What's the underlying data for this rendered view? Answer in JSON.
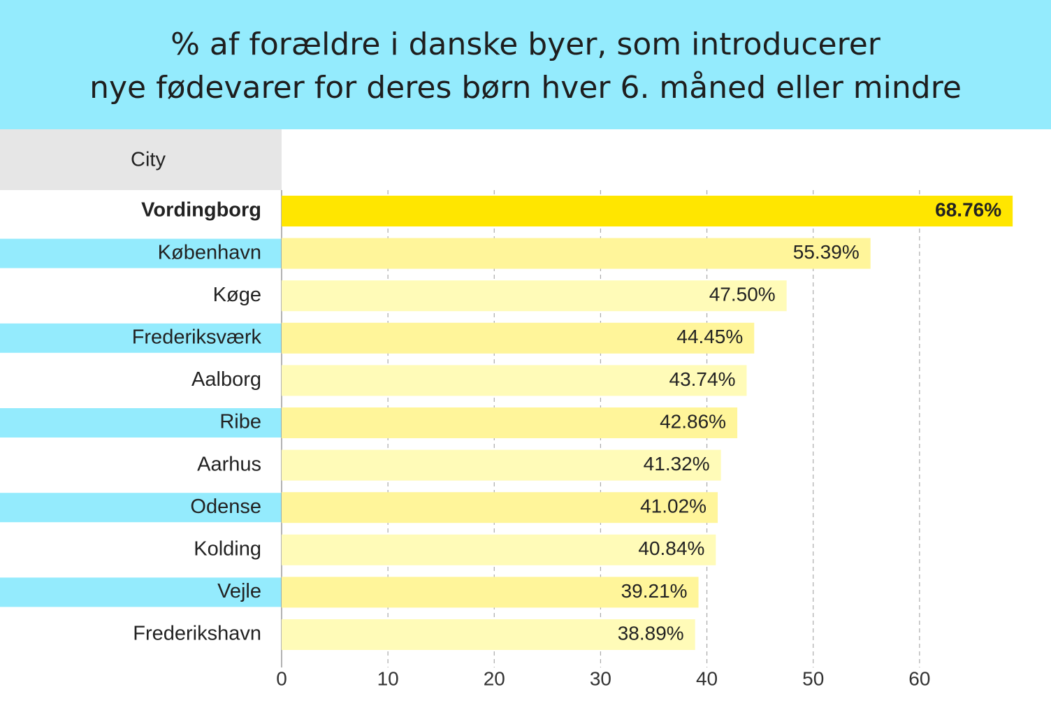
{
  "chart_data": {
    "type": "bar",
    "orientation": "horizontal",
    "title": [
      "% af forældre i danske byer, som introducerer",
      "nye fødevarer for deres børn hver 6. måned eller mindre"
    ],
    "y_label": "City",
    "categories": [
      "Vordingborg",
      "København",
      "Køge",
      "Frederiksværk",
      "Aalborg",
      "Ribe",
      "Aarhus",
      "Odense",
      "Kolding",
      "Vejle",
      "Frederikshavn"
    ],
    "values": [
      68.76,
      55.39,
      47.5,
      44.45,
      43.74,
      42.86,
      41.32,
      41.02,
      40.84,
      39.21,
      38.89
    ],
    "value_labels": [
      "68.76%",
      "55.39%",
      "47.50%",
      "44.45%",
      "43.74%",
      "42.86%",
      "41.32%",
      "41.02%",
      "40.84%",
      "39.21%",
      "38.89%"
    ],
    "colors": [
      "#ffe600",
      "#fff59a",
      "#fffbb8",
      "#fff59a",
      "#fffbb8",
      "#fff59a",
      "#fffbb8",
      "#fff59a",
      "#fffbb8",
      "#fff59a",
      "#fffbb8"
    ],
    "xlim": [
      0,
      70
    ],
    "xticks": [
      0,
      10,
      20,
      30,
      40,
      50,
      60
    ],
    "grid": true
  }
}
